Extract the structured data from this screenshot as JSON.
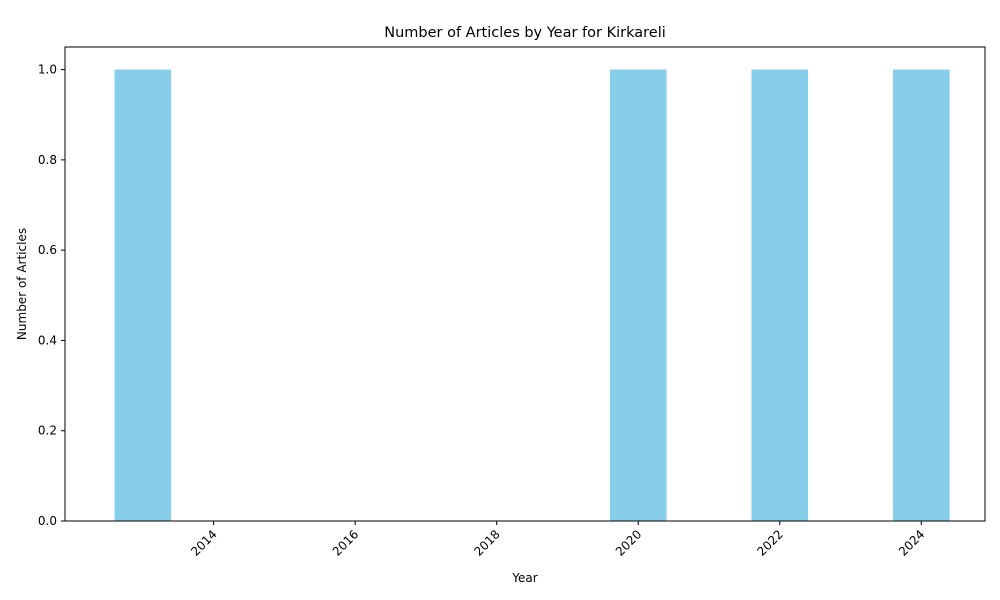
{
  "chart_data": {
    "type": "bar",
    "title": "Number of Articles by Year for Kirkareli",
    "xlabel": "Year",
    "ylabel": "Number of Articles",
    "x": [
      2013,
      2020,
      2022,
      2024
    ],
    "values": [
      1,
      1,
      1,
      1
    ],
    "bar_width": 0.8,
    "xlim": [
      2011.9,
      2024.9
    ],
    "ylim": [
      0,
      1.05
    ],
    "xticks": [
      2014,
      2016,
      2018,
      2020,
      2022,
      2024
    ],
    "yticks": [
      "0.0",
      "0.2",
      "0.4",
      "0.6",
      "0.8",
      "1.0"
    ],
    "xtick_rotation": 45,
    "bar_color": "#87ceeb",
    "grid": false,
    "legend": "none"
  }
}
